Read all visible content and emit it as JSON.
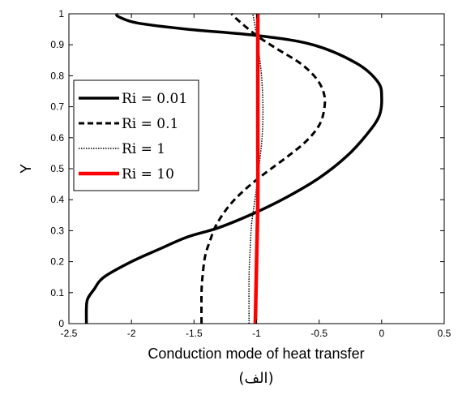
{
  "chart_data": {
    "type": "line",
    "xlabel": "Conduction mode of heat transfer",
    "ylabel": "Y",
    "caption": "(الف)",
    "xlim": [
      -2.5,
      0.5
    ],
    "ylim": [
      0,
      1
    ],
    "xticks": [
      "-2.5",
      "-2",
      "-1.5",
      "-1",
      "-0.5",
      "0",
      "0.5"
    ],
    "yticks": [
      "0",
      "0.1",
      "0.2",
      "0.3",
      "0.4",
      "0.5",
      "0.6",
      "0.7",
      "0.8",
      "0.9",
      "1"
    ],
    "grid": false,
    "legend_position": "upper-left",
    "series": [
      {
        "name": "Ri = 0.01",
        "color": "#000000",
        "style": "solid",
        "x": [
          -2.36,
          -2.36,
          -2.35,
          -2.3,
          -2.22,
          -2.0,
          -1.78,
          -1.55,
          -1.3,
          -1.0,
          -0.75,
          -0.5,
          -0.28,
          -0.12,
          -0.02,
          0.0,
          -0.03,
          -0.2,
          -0.55,
          -1.0,
          -1.55,
          -1.95,
          -2.1,
          -2.12
        ],
        "y": [
          0.0,
          0.05,
          0.08,
          0.11,
          0.15,
          0.2,
          0.24,
          0.28,
          0.31,
          0.36,
          0.41,
          0.47,
          0.54,
          0.61,
          0.67,
          0.73,
          0.78,
          0.84,
          0.9,
          0.93,
          0.95,
          0.97,
          0.99,
          1.0
        ]
      },
      {
        "name": "Ri = 0.1",
        "color": "#000000",
        "style": "dashed",
        "x": [
          -1.44,
          -1.44,
          -1.43,
          -1.41,
          -1.37,
          -1.32,
          -1.22,
          -1.1,
          -0.95,
          -0.75,
          -0.6,
          -0.5,
          -0.46,
          -0.46,
          -0.52,
          -0.65,
          -0.85,
          -1.0,
          -1.15,
          -1.2
        ],
        "y": [
          0.0,
          0.1,
          0.16,
          0.22,
          0.27,
          0.32,
          0.38,
          0.43,
          0.48,
          0.54,
          0.59,
          0.64,
          0.69,
          0.74,
          0.79,
          0.84,
          0.89,
          0.93,
          0.98,
          1.0
        ]
      },
      {
        "name": "Ri = 1",
        "color": "#000000",
        "style": "dotted",
        "x": [
          -1.06,
          -1.06,
          -1.05,
          -1.04,
          -1.02,
          -1.0,
          -0.98,
          -0.96,
          -0.95,
          -0.95,
          -0.96,
          -0.98,
          -1.0,
          -1.03
        ],
        "y": [
          0.0,
          0.15,
          0.25,
          0.32,
          0.38,
          0.44,
          0.51,
          0.58,
          0.65,
          0.72,
          0.8,
          0.87,
          0.93,
          1.0
        ]
      },
      {
        "name": "Ri = 10",
        "color": "#ff0000",
        "style": "solid",
        "x": [
          -1.01,
          -1.0,
          -0.99,
          -0.99,
          -0.99,
          -0.99
        ],
        "y": [
          0.0,
          0.2,
          0.4,
          0.6,
          0.8,
          1.0
        ]
      }
    ]
  }
}
